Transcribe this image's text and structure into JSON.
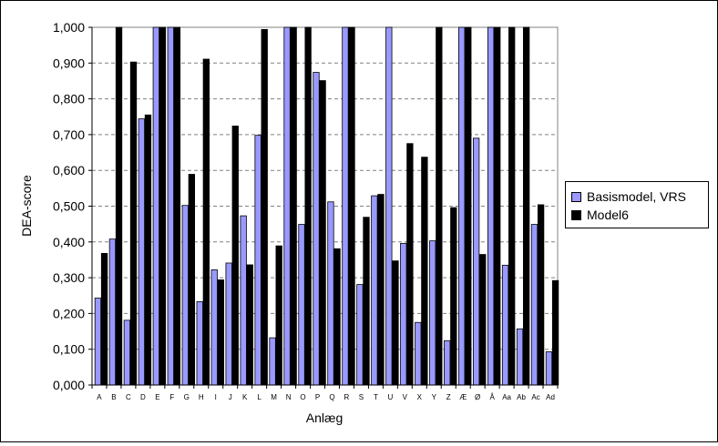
{
  "chart_data": {
    "type": "bar",
    "title": "",
    "xlabel": "Anlæg",
    "ylabel": "DEA-score",
    "ylim": [
      0,
      1
    ],
    "yticks": [
      "0,000",
      "0,100",
      "0,200",
      "0,300",
      "0,400",
      "0,500",
      "0,600",
      "0,700",
      "0,800",
      "0,900",
      "1,000"
    ],
    "grid": true,
    "legend_position": "right",
    "categories": [
      "A",
      "B",
      "C",
      "D",
      "E",
      "F",
      "G",
      "H",
      "I",
      "J",
      "K",
      "L",
      "M",
      "N",
      "O",
      "P",
      "Q",
      "R",
      "S",
      "T",
      "U",
      "V",
      "X",
      "Y",
      "Z",
      "Æ",
      "Ø",
      "Å",
      "Aa",
      "Ab",
      "Ac",
      "Ad"
    ],
    "series": [
      {
        "name": "Basismodel, VRS",
        "color": "#9999ff",
        "values": [
          0.243,
          0.408,
          0.181,
          0.744,
          1.0,
          1.0,
          0.502,
          0.233,
          0.322,
          0.341,
          0.473,
          0.698,
          0.132,
          1.0,
          0.449,
          0.874,
          0.512,
          1.0,
          0.281,
          0.529,
          1.0,
          0.396,
          0.175,
          0.403,
          0.124,
          1.0,
          0.69,
          1.0,
          0.335,
          0.157,
          0.449,
          0.093
        ]
      },
      {
        "name": "Model6",
        "color": "#000000",
        "values": [
          0.368,
          1.0,
          0.903,
          0.755,
          1.0,
          1.0,
          0.589,
          0.911,
          0.294,
          0.724,
          0.336,
          0.994,
          0.389,
          1.0,
          1.0,
          0.851,
          0.381,
          1.0,
          0.469,
          0.533,
          0.347,
          0.675,
          0.637,
          1.0,
          0.496,
          1.0,
          0.365,
          1.0,
          1.0,
          1.0,
          0.504,
          0.292
        ]
      }
    ]
  }
}
